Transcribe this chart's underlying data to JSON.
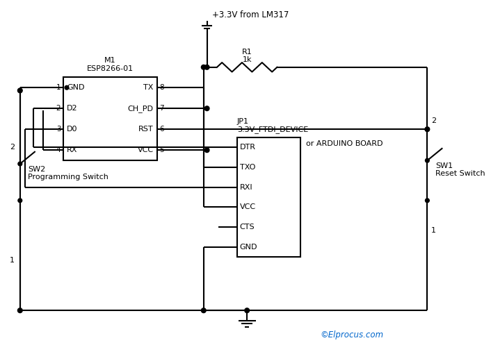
{
  "bg_color": "#ffffff",
  "text_color": "#000000",
  "copyright_color": "#0066cc",
  "copyright_text": "©Elprocus.com",
  "power_label": "+3.3V from LM317",
  "r1_label": "R1",
  "r1_value": "1k",
  "m1_label": "M1",
  "m1_sublabel": "ESP8266-01",
  "jp1_label": "JP1",
  "jp1_sublabel": "3.3V_FTDI_DEVICE",
  "jp1_sublabel2": "or ARDUINO BOARD",
  "sw1_label": "SW1",
  "sw1_sublabel": "Reset Switch",
  "sw2_label": "SW2",
  "sw2_sublabel": "Programming Switch",
  "esp_pins_left": [
    "GND",
    "D2",
    "D0",
    "RX"
  ],
  "esp_pins_left_nums": [
    "1",
    "2",
    "3",
    "4"
  ],
  "esp_pins_right": [
    "TX",
    "CH_PD",
    "RST",
    "VCC"
  ],
  "esp_pins_right_nums": [
    "8",
    "7",
    "6",
    "5"
  ],
  "jp1_pins": [
    "DTR",
    "TXO",
    "RXI",
    "VCC",
    "CTS",
    "GND"
  ]
}
